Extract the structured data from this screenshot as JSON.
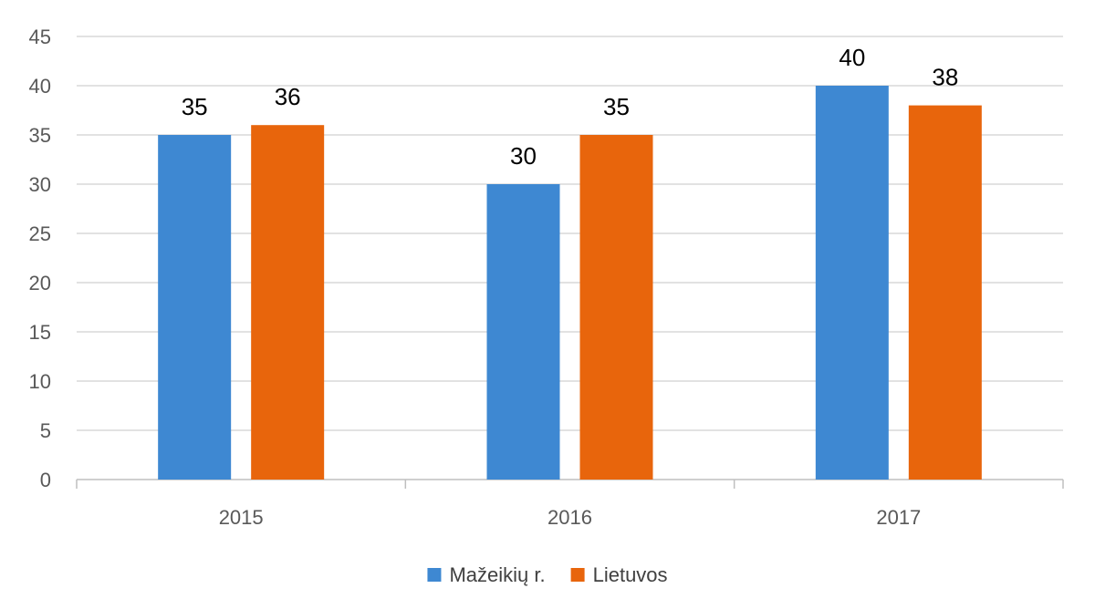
{
  "chart_data": {
    "type": "bar",
    "categories": [
      "2015",
      "2016",
      "2017"
    ],
    "series": [
      {
        "name": "Mažeikių r.",
        "values": [
          35,
          30,
          40
        ],
        "color": "#3e88d2"
      },
      {
        "name": "Lietuvos",
        "values": [
          36,
          35,
          38
        ],
        "color": "#e8650c"
      }
    ],
    "title": "",
    "xlabel": "",
    "ylabel": "",
    "ylim": [
      0,
      45
    ],
    "yticks": [
      "0",
      "5",
      "10",
      "15",
      "20",
      "25",
      "30",
      "35",
      "40",
      "45"
    ],
    "grid": true,
    "data_labels": true,
    "legend": "bottom"
  }
}
